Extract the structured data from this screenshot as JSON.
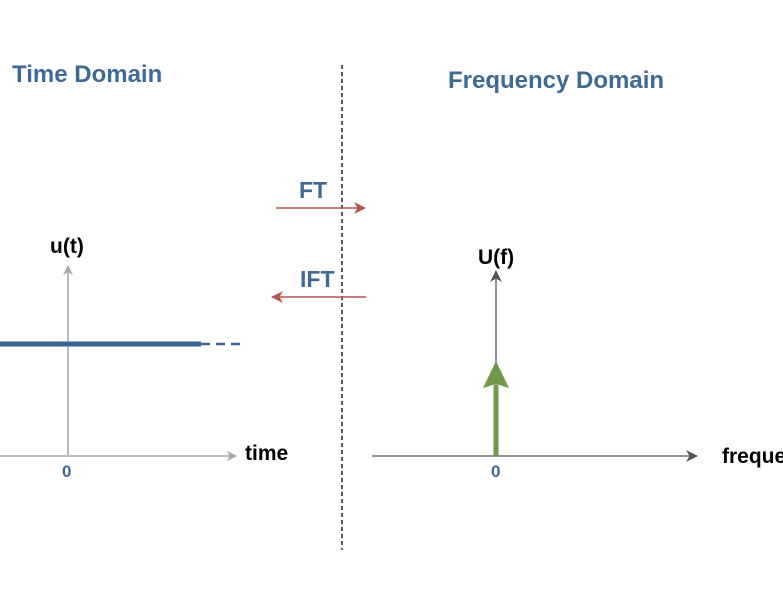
{
  "colors": {
    "title": "#3f6a98",
    "operation_arrow": "#b85450",
    "time_signal": "#3a6496",
    "impulse": "#6d9a4f",
    "axis_time": "#a6a6a6",
    "axis_freq": "#555555",
    "divider": "#000000"
  },
  "time_domain": {
    "title": "Time Domain",
    "y_label": "u(t)",
    "x_label": "time",
    "origin_tick": "0"
  },
  "frequency_domain": {
    "title": "Frequency Domain",
    "y_label": "U(f)",
    "x_label": "frequency",
    "origin_tick": "0"
  },
  "transforms": {
    "forward": "FT",
    "inverse": "IFT"
  }
}
